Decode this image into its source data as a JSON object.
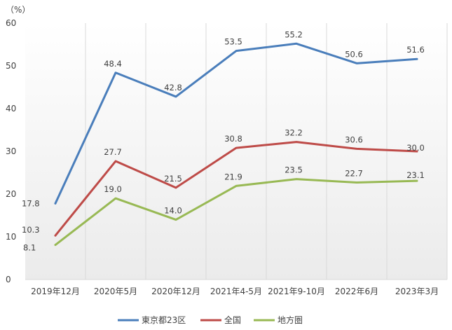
{
  "chart_data": {
    "type": "line",
    "unit_label": "（%）",
    "categories": [
      "2019年12月",
      "2020年5月",
      "2020年12月",
      "2021年4-5月",
      "2021年9-10月",
      "2022年6月",
      "2023年3月"
    ],
    "ylim": [
      0,
      60
    ],
    "yticks": [
      0,
      10,
      20,
      30,
      40,
      50,
      60
    ],
    "grid": "vertical",
    "background": "gradient-grey",
    "legend_position": "bottom",
    "series": [
      {
        "name": "東京都23区",
        "color": "#4a7ebb",
        "values": [
          17.8,
          48.4,
          42.8,
          53.5,
          55.2,
          50.6,
          51.6
        ]
      },
      {
        "name": "全国",
        "color": "#be4b48",
        "values": [
          10.3,
          27.7,
          21.5,
          30.8,
          32.2,
          30.6,
          30.0
        ]
      },
      {
        "name": "地方圏",
        "color": "#98b954",
        "values": [
          8.1,
          19.0,
          14.0,
          21.9,
          23.5,
          22.7,
          23.1
        ]
      }
    ]
  }
}
